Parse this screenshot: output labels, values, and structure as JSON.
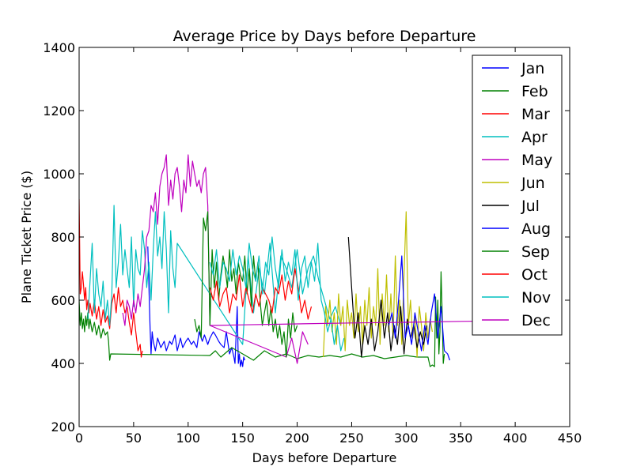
{
  "chart_data": {
    "type": "line",
    "title": "Average Price by Days before Departure",
    "xlabel": "Days before Departure",
    "ylabel": "Plane Ticket Price ($)",
    "xlim": [
      0,
      450
    ],
    "ylim": [
      200,
      1400
    ],
    "xticks": [
      "0",
      "50",
      "100",
      "150",
      "200",
      "250",
      "300",
      "350",
      "400",
      "450"
    ],
    "yticks": [
      "200",
      "400",
      "600",
      "800",
      "1000",
      "1200",
      "1400"
    ],
    "grid": false,
    "legend_position": "top-right",
    "series": [
      {
        "name": "Jan",
        "color": "#0000ff",
        "x": [
          63,
          65,
          66,
          67,
          68,
          70,
          72,
          75,
          78,
          80,
          83,
          85,
          88,
          90,
          93,
          95,
          98,
          100,
          103,
          105,
          108,
          110,
          113,
          115,
          118,
          120,
          123,
          125,
          128,
          130,
          133,
          135,
          138,
          140,
          142,
          143,
          145,
          146,
          147,
          148,
          149,
          150,
          151,
          152
        ],
        "y": [
          770,
          520,
          430,
          500,
          470,
          440,
          480,
          450,
          470,
          440,
          470,
          460,
          490,
          440,
          480,
          450,
          470,
          480,
          460,
          470,
          450,
          500,
          470,
          490,
          460,
          480,
          500,
          490,
          470,
          460,
          450,
          500,
          430,
          450,
          420,
          400,
          580,
          400,
          430,
          390,
          410,
          390,
          420,
          410
        ]
      },
      {
        "name": "Feb",
        "color": "#008000",
        "x": [
          0,
          1,
          2,
          3,
          4,
          5,
          6,
          7,
          8,
          9,
          10,
          12,
          14,
          16,
          18,
          20,
          22,
          24,
          26,
          27,
          28,
          29,
          120,
          125,
          130,
          140,
          150,
          160,
          170,
          180,
          190,
          200,
          210,
          220,
          230,
          240,
          250,
          260,
          270,
          280,
          290,
          300,
          310,
          320,
          322,
          324,
          326,
          327,
          328,
          329,
          330,
          331,
          332,
          333,
          334,
          335
        ],
        "y": [
          600,
          520,
          560,
          510,
          540,
          500,
          550,
          520,
          560,
          510,
          540,
          500,
          530,
          490,
          520,
          480,
          510,
          490,
          500,
          470,
          410,
          430,
          425,
          440,
          420,
          450,
          430,
          410,
          440,
          420,
          430,
          415,
          425,
          420,
          425,
          420,
          430,
          420,
          425,
          415,
          420,
          425,
          420,
          420,
          390,
          395,
          390,
          610,
          480,
          600,
          430,
          500,
          690,
          560,
          400,
          430
        ]
      },
      {
        "name": "Mar",
        "color": "#ff0000",
        "x": [
          0,
          1,
          2,
          3,
          4,
          5,
          6,
          7,
          8,
          9,
          10,
          12,
          14,
          16,
          18,
          20,
          22,
          24,
          26,
          28,
          30,
          32,
          34,
          36,
          38,
          40,
          42,
          44,
          46,
          48,
          50,
          52,
          54,
          56,
          57,
          58
        ],
        "y": [
          920,
          620,
          640,
          690,
          650,
          600,
          640,
          570,
          600,
          560,
          590,
          550,
          600,
          540,
          580,
          520,
          570,
          530,
          550,
          510,
          590,
          620,
          560,
          640,
          580,
          600,
          560,
          580,
          530,
          490,
          560,
          500,
          440,
          460,
          420,
          440
        ]
      },
      {
        "name": "Apr",
        "color": "#00bfbf",
        "x": [
          8,
          10,
          12,
          14,
          16,
          18,
          20,
          22,
          24,
          26,
          28,
          30,
          32,
          34,
          36,
          38,
          40,
          42,
          44,
          46,
          48,
          50,
          52,
          54,
          56,
          58,
          60,
          62,
          64,
          66,
          68,
          70,
          72,
          74,
          76,
          78,
          80,
          82,
          84,
          86,
          88,
          90,
          150,
          155,
          160,
          165,
          170,
          175,
          180,
          185,
          190,
          195,
          200,
          205,
          210,
          215,
          220,
          225,
          230,
          235,
          240
        ],
        "y": [
          540,
          660,
          780,
          560,
          700,
          620,
          580,
          660,
          540,
          600,
          520,
          620,
          900,
          640,
          720,
          840,
          680,
          760,
          700,
          640,
          800,
          580,
          760,
          700,
          680,
          820,
          760,
          640,
          720,
          600,
          760,
          880,
          740,
          800,
          700,
          880,
          760,
          560,
          820,
          700,
          640,
          780,
          460,
          740,
          560,
          700,
          620,
          780,
          560,
          740,
          700,
          640,
          760,
          620,
          700,
          740,
          660,
          600,
          540,
          580,
          520
        ]
      },
      {
        "name": "May",
        "color": "#bf00bf",
        "x": [
          40,
          42,
          44,
          46,
          48,
          50,
          52,
          54,
          56,
          58,
          60,
          62,
          64,
          66,
          68,
          70,
          72,
          74,
          76,
          78,
          80,
          82,
          84,
          86,
          88,
          90,
          92,
          94,
          96,
          98,
          100,
          102,
          104,
          106,
          108,
          110,
          112,
          114,
          116,
          118,
          120,
          190,
          195,
          200,
          205,
          210
        ],
        "y": [
          560,
          520,
          600,
          580,
          540,
          600,
          560,
          620,
          580,
          640,
          700,
          800,
          820,
          900,
          880,
          940,
          840,
          960,
          1000,
          1020,
          1060,
          900,
          980,
          920,
          1000,
          1020,
          960,
          880,
          980,
          940,
          1060,
          960,
          1040,
          1000,
          960,
          980,
          940,
          1000,
          1020,
          900,
          520,
          420,
          480,
          400,
          500,
          460
        ]
      },
      {
        "name": "Jun",
        "color": "#bfbf00",
        "x": [
          224,
          226,
          228,
          230,
          232,
          234,
          236,
          238,
          240,
          242,
          244,
          246,
          248,
          250,
          252,
          254,
          256,
          258,
          260,
          262,
          264,
          266,
          268,
          270,
          272,
          274,
          276,
          278,
          280,
          282,
          284,
          286,
          288,
          290,
          292,
          294,
          296,
          298,
          300,
          302,
          304,
          306,
          308,
          310,
          312,
          314,
          316,
          318,
          320,
          322,
          324
        ],
        "y": [
          420,
          580,
          520,
          600,
          500,
          560,
          460,
          620,
          520,
          580,
          440,
          600,
          520,
          560,
          480,
          620,
          500,
          580,
          460,
          600,
          520,
          640,
          480,
          580,
          520,
          700,
          460,
          620,
          520,
          680,
          500,
          620,
          480,
          740,
          520,
          600,
          460,
          680,
          880,
          520,
          600,
          480,
          560,
          420,
          580,
          520,
          440,
          560,
          480,
          540,
          500
        ]
      },
      {
        "name": "Jul",
        "color": "#000000",
        "x": [
          247,
          250,
          253,
          256,
          259,
          262,
          265,
          268,
          271,
          274,
          277,
          280,
          283,
          286,
          289,
          292,
          295,
          298,
          301,
          304,
          307,
          310,
          313,
          316,
          319
        ],
        "y": [
          800,
          640,
          480,
          560,
          420,
          520,
          460,
          540,
          440,
          500,
          600,
          480,
          560,
          440,
          520,
          460,
          580,
          430,
          540,
          480,
          520,
          450,
          500,
          460,
          520
        ]
      },
      {
        "name": "Aug",
        "color": "#0000ff",
        "x": [
          284,
          287,
          290,
          293,
          296,
          299,
          302,
          305,
          308,
          311,
          314,
          317,
          320,
          323,
          326,
          329,
          332,
          335,
          338,
          340
        ],
        "y": [
          520,
          560,
          480,
          600,
          740,
          480,
          520,
          460,
          560,
          500,
          440,
          520,
          460,
          560,
          620,
          480,
          580,
          440,
          430,
          410
        ]
      },
      {
        "name": "Sep",
        "color": "#008000",
        "x": [
          106,
          108,
          110,
          112,
          114,
          116,
          118,
          120,
          122,
          124,
          126,
          128,
          130,
          132,
          134,
          136,
          138,
          140,
          142,
          144,
          146,
          148,
          150,
          152,
          154,
          156,
          158,
          160,
          162,
          164,
          166,
          168,
          170,
          172,
          174,
          176,
          178,
          180,
          182,
          184,
          186,
          188,
          190,
          192,
          194,
          196,
          198,
          200
        ],
        "y": [
          540,
          500,
          520,
          480,
          860,
          820,
          880,
          520,
          760,
          640,
          720,
          600,
          680,
          740,
          700,
          640,
          760,
          660,
          700,
          620,
          720,
          680,
          660,
          740,
          620,
          700,
          580,
          740,
          660,
          720,
          600,
          520,
          560,
          600,
          520,
          580,
          500,
          540,
          480,
          520,
          460,
          500,
          420,
          540,
          480,
          560,
          500,
          520
        ]
      },
      {
        "name": "Oct",
        "color": "#ff0000",
        "x": [
          120,
          123,
          126,
          129,
          132,
          135,
          138,
          141,
          144,
          147,
          150,
          153,
          156,
          159,
          162,
          165,
          168,
          171,
          174,
          177,
          180,
          183,
          186,
          189,
          192,
          195,
          198,
          201,
          204,
          207,
          210,
          213
        ],
        "y": [
          640,
          600,
          660,
          580,
          620,
          640,
          560,
          620,
          600,
          680,
          580,
          640,
          600,
          560,
          620,
          580,
          640,
          620,
          600,
          560,
          640,
          620,
          680,
          600,
          660,
          620,
          700,
          640,
          560,
          600,
          540,
          580
        ]
      },
      {
        "name": "Nov",
        "color": "#00bfbf",
        "x": [
          120,
          123,
          126,
          129,
          132,
          135,
          138,
          141,
          144,
          147,
          150,
          153,
          156,
          159,
          162,
          165,
          168,
          171,
          174,
          177,
          180,
          183,
          186,
          189,
          192,
          195,
          198,
          201,
          204,
          207,
          210,
          213,
          216,
          219,
          222,
          225,
          228,
          231,
          234,
          237,
          240,
          243
        ],
        "y": [
          720,
          680,
          760,
          640,
          720,
          700,
          660,
          760,
          680,
          740,
          700,
          640,
          780,
          700,
          660,
          740,
          620,
          720,
          680,
          800,
          700,
          640,
          760,
          660,
          720,
          680,
          760,
          600,
          700,
          740,
          640,
          720,
          660,
          780,
          600,
          560,
          500,
          540,
          460,
          520,
          440,
          480
        ]
      },
      {
        "name": "Dec",
        "color": "#bf00bf",
        "x": [
          120,
          150,
          200,
          250,
          300,
          350,
          400
        ],
        "y": [
          520,
          522,
          525,
          528,
          530,
          533,
          535
        ]
      }
    ]
  }
}
